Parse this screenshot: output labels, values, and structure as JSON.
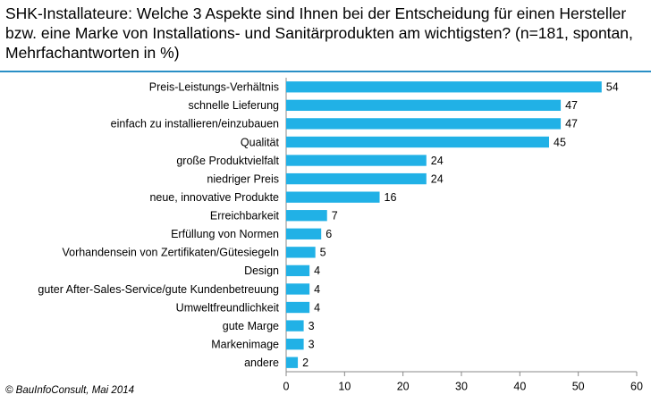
{
  "chart_data": {
    "type": "barh",
    "title": "SHK-Installateure: Welche 3 Aspekte sind Ihnen bei der Entscheidung für einen Hersteller bzw. eine Marke von Installations- und Sanitärprodukten am wichtigsten? (n=181, spontan, Mehrfachantworten in %)",
    "source": "© BauInfoConsult,  Mai 2014",
    "categories": [
      "Preis-Leistungs-Verhältnis",
      "schnelle Lieferung",
      "einfach zu installieren/einzubauen",
      "Qualität",
      "große Produktvielfalt",
      "niedriger Preis",
      "neue, innovative Produkte",
      "Erreichbarkeit",
      "Erfüllung von Normen",
      "Vorhandensein von Zertifikaten/Gütesiegeln",
      "Design",
      "guter After-Sales-Service/gute Kundenbetreuung",
      "Umweltfreundlichkeit",
      "gute Marge",
      "Markenimage",
      "andere"
    ],
    "values": [
      54,
      47,
      47,
      45,
      24,
      24,
      16,
      7,
      6,
      5,
      4,
      4,
      4,
      3,
      3,
      2
    ],
    "color": "#21b1e6",
    "xlim": [
      0,
      60
    ],
    "xticks": [
      0,
      10,
      20,
      30,
      40,
      50,
      60
    ]
  }
}
